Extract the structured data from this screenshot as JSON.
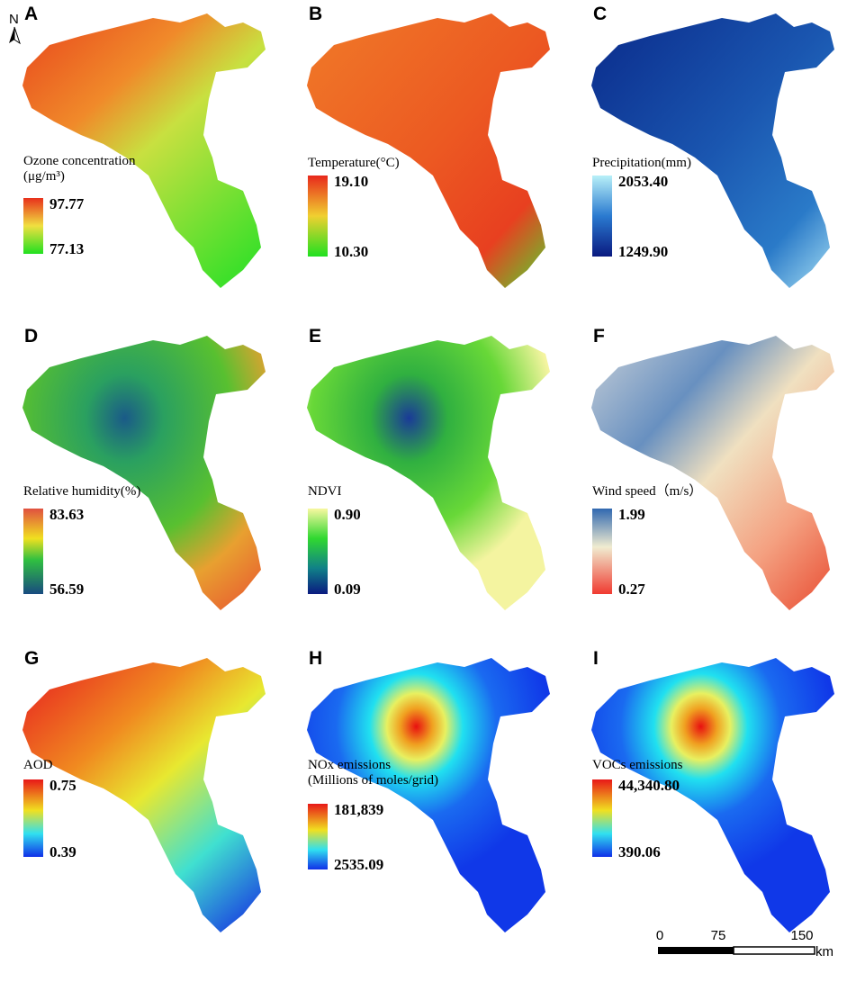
{
  "north": "N",
  "panels": [
    {
      "letter": "A",
      "legend_title": [
        "Ozone concentration",
        "(μg/m³)"
      ],
      "max": "97.77",
      "min": "77.13"
    },
    {
      "letter": "B",
      "legend_title": [
        "Temperature(°C)"
      ],
      "max": "19.10",
      "min": "10.30"
    },
    {
      "letter": "C",
      "legend_title": [
        "Precipitation(mm)"
      ],
      "max": "2053.40",
      "min": "1249.90"
    },
    {
      "letter": "D",
      "legend_title": [
        "Relative humidity(%)"
      ],
      "max": "83.63",
      "min": "56.59"
    },
    {
      "letter": "E",
      "legend_title": [
        "NDVI"
      ],
      "max": "0.90",
      "min": "0.09"
    },
    {
      "letter": "F",
      "legend_title": [
        "Wind speed（m/s）"
      ],
      "max": "1.99",
      "min": "0.27"
    },
    {
      "letter": "G",
      "legend_title": [
        "AOD"
      ],
      "max": "0.75",
      "min": "0.39"
    },
    {
      "letter": "H",
      "legend_title": [
        "NOx emissions",
        "(Millions of moles/grid)"
      ],
      "max": "181,839",
      "min": "2535.09"
    },
    {
      "letter": "I",
      "legend_title": [
        "VOCs emissions"
      ],
      "max": "44,340.80",
      "min": "390.06"
    }
  ],
  "scale_bar": {
    "labels": [
      "0",
      "75",
      "150"
    ],
    "unit": "km"
  }
}
